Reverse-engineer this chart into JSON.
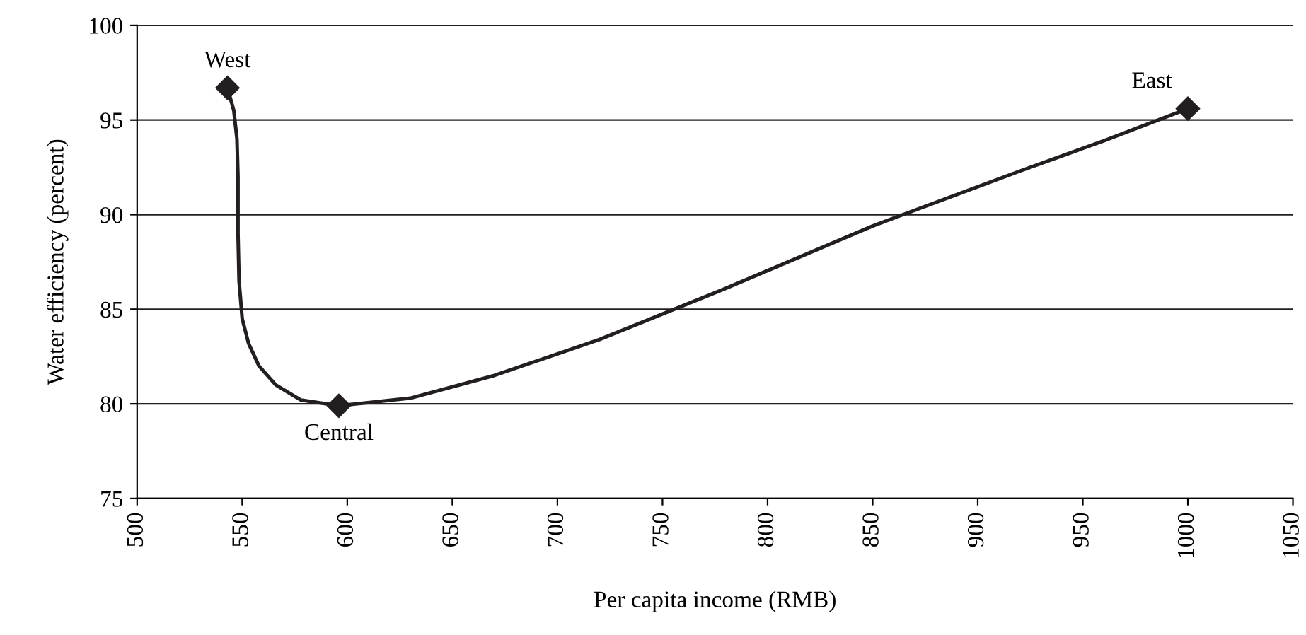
{
  "chart_data": {
    "type": "line",
    "xlabel": "Per capita income (RMB)",
    "ylabel": "Water efficiency (percent)",
    "x": [
      543,
      596,
      1000
    ],
    "series": [
      {
        "color": "#231f20",
        "marker": "none",
        "x": [
          543,
          546,
          547.5,
          548,
          548,
          548.5,
          550,
          553,
          558,
          566,
          578,
          596,
          630,
          670,
          720,
          780,
          850,
          920,
          960,
          1000
        ],
        "values": [
          96.7,
          95.5,
          94,
          92,
          89,
          86.5,
          84.5,
          83.2,
          82,
          81,
          80.2,
          79.9,
          80.3,
          81.5,
          83.4,
          86.1,
          89.4,
          92.3,
          93.9,
          95.6
        ]
      },
      {
        "type": "scatter",
        "color": "#231f20",
        "marker": "diamond",
        "values": [
          96.7,
          79.9,
          95.6
        ]
      }
    ],
    "line_style": "solid",
    "annotations": [
      {
        "text": "West",
        "x": 543,
        "y": 96.7
      },
      {
        "text": "Central",
        "x": 596,
        "y": 79.9
      },
      {
        "text": "East",
        "x": 1000,
        "y": 95.6
      }
    ],
    "xlim": [
      500,
      1050
    ],
    "xticks": [
      500,
      550,
      600,
      650,
      700,
      750,
      800,
      850,
      900,
      950,
      1000,
      1050
    ],
    "ylim": [
      75,
      100
    ],
    "yticks": [
      75,
      80,
      85,
      90,
      95,
      100
    ],
    "grid": "y"
  }
}
